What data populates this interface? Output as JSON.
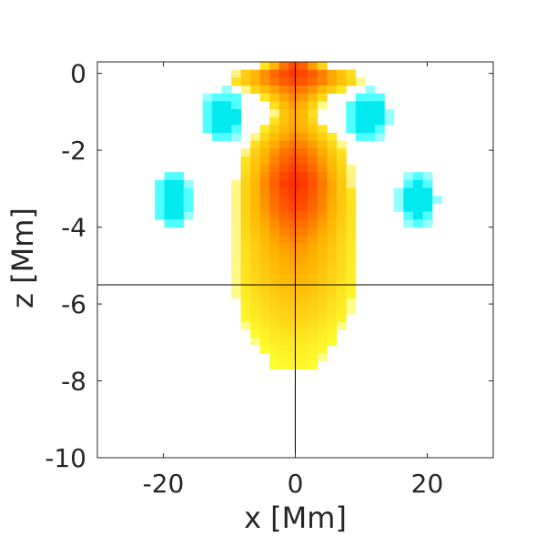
{
  "chart_data": {
    "type": "heatmap",
    "title": "",
    "xlabel": "x [Mm]",
    "ylabel": "z [Mm]",
    "xlim": [
      -30,
      30
    ],
    "ylim": [
      -10,
      0.3
    ],
    "xticks": [
      -20,
      0,
      20
    ],
    "yticks": [
      0,
      -2,
      -4,
      -6,
      -8,
      -10
    ],
    "xtick_labels": [
      "-20",
      "0",
      "20"
    ],
    "ytick_labels": [
      "0",
      "-2",
      "-4",
      "-6",
      "-8",
      "-10"
    ],
    "grid": false,
    "crosshair": {
      "x": 0,
      "z": -5.5
    },
    "colors": {
      "hot_low": "#ffff30",
      "hot_mid": "#ffb000",
      "hot_high": "#ff1800",
      "cool": "#50ffff",
      "cool_strong": "#00eaf0",
      "axis": "#262626",
      "crosshair": "#000000"
    },
    "plume_profile": [
      {
        "z": 0.2,
        "half_width": 5.0,
        "peak": 0.85
      },
      {
        "z": -0.1,
        "half_width": 11.5,
        "peak": 0.9
      },
      {
        "z": -0.35,
        "half_width": 8.5,
        "peak": 0.75
      },
      {
        "z": -0.7,
        "half_width": 4.5,
        "peak": 0.6
      },
      {
        "z": -1.1,
        "half_width": 3.2,
        "peak": 0.5
      },
      {
        "z": -1.5,
        "half_width": 5.5,
        "peak": 0.55
      },
      {
        "z": -2.0,
        "half_width": 8.0,
        "peak": 0.75
      },
      {
        "z": -2.8,
        "half_width": 9.0,
        "peak": 0.95
      },
      {
        "z": -3.5,
        "half_width": 9.5,
        "peak": 0.85
      },
      {
        "z": -4.5,
        "half_width": 9.5,
        "peak": 0.6
      },
      {
        "z": -5.5,
        "half_width": 9.5,
        "peak": 0.45
      },
      {
        "z": -6.3,
        "half_width": 8.5,
        "peak": 0.3
      },
      {
        "z": -7.0,
        "half_width": 6.0,
        "peak": 0.15
      },
      {
        "z": -7.6,
        "half_width": 3.5,
        "peak": 0.05
      }
    ],
    "cool_blobs": [
      {
        "x": -11,
        "z": -1.1,
        "rx": 3.3,
        "rz": 0.7
      },
      {
        "x": 11,
        "z": -1.1,
        "rx": 3.3,
        "rz": 0.7
      },
      {
        "x": -18.5,
        "z": -3.3,
        "rx": 3.0,
        "rz": 0.75
      },
      {
        "x": 18.5,
        "z": -3.3,
        "rx": 3.0,
        "rz": 0.75
      }
    ]
  }
}
